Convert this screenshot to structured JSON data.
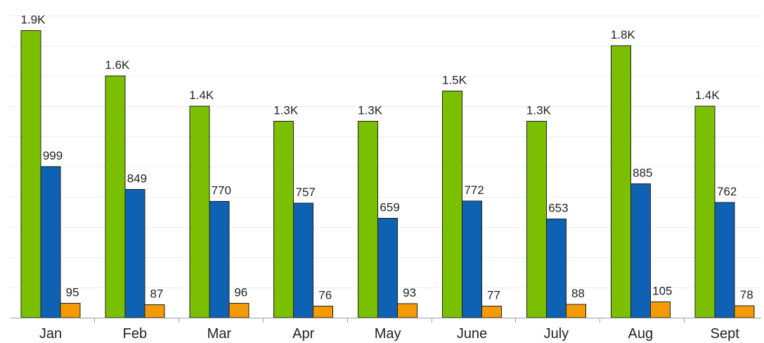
{
  "chart_data": {
    "type": "bar",
    "categories": [
      "Jan",
      "Feb",
      "Mar",
      "Apr",
      "May",
      "June",
      "July",
      "Aug",
      "Sept"
    ],
    "series": [
      {
        "values": [
          1900,
          1600,
          1400,
          1300,
          1300,
          1500,
          1300,
          1800,
          1400
        ],
        "labels": [
          "1.9K",
          "1.6K",
          "1.4K",
          "1.3K",
          "1.3K",
          "1.5K",
          "1.3K",
          "1.8K",
          "1.4K"
        ],
        "color": "#7ac000"
      },
      {
        "values": [
          999,
          849,
          770,
          757,
          659,
          772,
          653,
          885,
          762
        ],
        "labels": [
          "999",
          "849",
          "770",
          "757",
          "659",
          "772",
          "653",
          "885",
          "762"
        ],
        "color": "#0f62b3"
      },
      {
        "values": [
          95,
          87,
          96,
          76,
          93,
          77,
          88,
          105,
          78
        ],
        "labels": [
          "95",
          "87",
          "96",
          "76",
          "93",
          "77",
          "88",
          "105",
          "78"
        ],
        "color": "#f39a05"
      }
    ],
    "title": "",
    "xlabel": "",
    "ylabel": "",
    "ylim": [
      0,
      2000
    ],
    "grid": true,
    "legend": "none",
    "colors": {
      "grid": "#e9edf1",
      "axis": "#9aa1a8",
      "text": "#222222",
      "bar_border": "#1f1f1f"
    }
  }
}
